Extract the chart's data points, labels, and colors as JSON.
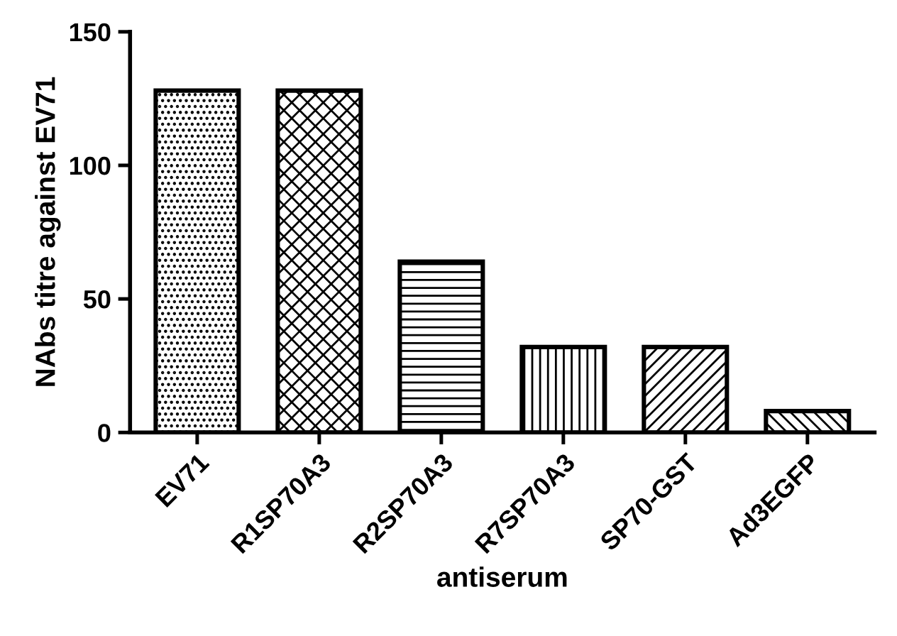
{
  "chart_data": {
    "type": "bar",
    "xlabel": "antiserum",
    "ylabel": "NAbs titre against EV71",
    "categories": [
      "EV71",
      "R1SP70A3",
      "R2SP70A3",
      "R7SP70A3",
      "SP70-GST",
      "Ad3EGFP"
    ],
    "values": [
      128,
      128,
      64,
      32,
      32,
      8
    ],
    "color": "#000000",
    "ylim": [
      0,
      150
    ],
    "yticks": [
      0,
      50,
      100,
      150
    ],
    "grid": false
  }
}
